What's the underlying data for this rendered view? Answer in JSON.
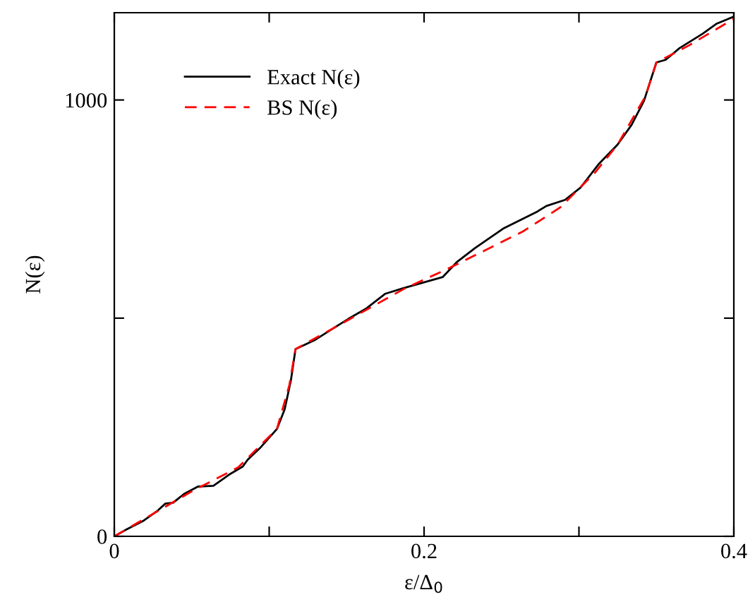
{
  "chart_data": {
    "type": "line",
    "xlabel": "ε/Δ$_{0}$",
    "ylabel": "N(ε)",
    "xlim": [
      0,
      0.4
    ],
    "ylim": [
      0,
      1200
    ],
    "xticks": [
      0,
      {
        "value": 0.1,
        "label": null
      },
      0.2,
      {
        "value": 0.3,
        "label": null
      },
      0.4
    ],
    "yticks": [
      0,
      {
        "value": 500,
        "label": null
      },
      1000
    ],
    "grid": false,
    "legend": "top left",
    "series": [
      {
        "name": "Exact N(ε)",
        "color": "#000000",
        "line_style": "solid",
        "x": [
          0,
          0.007,
          0.019,
          0.028,
          0.033,
          0.038,
          0.045,
          0.054,
          0.064,
          0.074,
          0.083,
          0.086,
          0.094,
          0.105,
          0.11,
          0.114,
          0.117,
          0.13,
          0.142,
          0.151,
          0.163,
          0.175,
          0.187,
          0.212,
          0.221,
          0.233,
          0.251,
          0.273,
          0.279,
          0.291,
          0.301,
          0.313,
          0.325,
          0.334,
          0.342,
          0.346,
          0.35,
          0.356,
          0.365,
          0.38,
          0.389,
          0.4
        ],
        "values": [
          0,
          14,
          36,
          59,
          75,
          77,
          97,
          114,
          116,
          141,
          160,
          175,
          202,
          246,
          291,
          357,
          429,
          451,
          478,
          498,
          523,
          556,
          569,
          594,
          628,
          661,
          705,
          744,
          757,
          771,
          799,
          854,
          898,
          943,
          998,
          1042,
          1086,
          1092,
          1119,
          1152,
          1175,
          1191
        ]
      },
      {
        "name": "BS N(ε)",
        "color": "#ff0000",
        "line_style": "dashed",
        "x": [
          0,
          0.05,
          0.08,
          0.105,
          0.113,
          0.117,
          0.142,
          0.187,
          0.217,
          0.264,
          0.288,
          0.31,
          0.325,
          0.343,
          0.35,
          0.371,
          0.4
        ],
        "values": [
          0,
          103,
          158,
          246,
          346,
          429,
          478,
          567,
          616,
          699,
          754,
          832,
          898,
          1009,
          1086,
          1125,
          1186
        ]
      }
    ]
  }
}
